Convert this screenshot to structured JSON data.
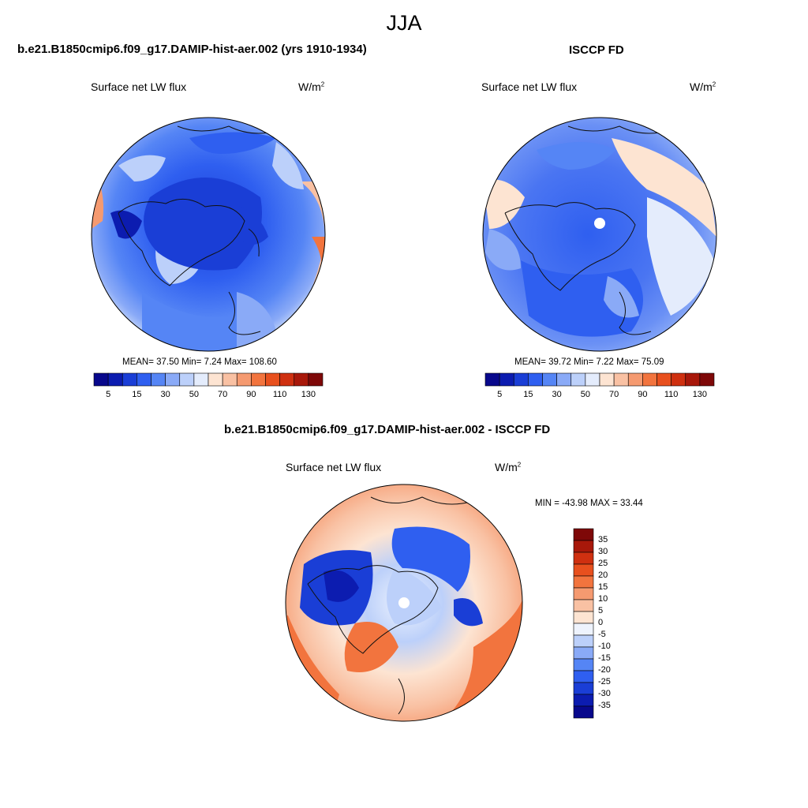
{
  "title": "JJA",
  "panels": [
    {
      "heading": "b.e21.B1850cmip6.f09_g17.DAMIP-hist-aer.002 (yrs 1910-1934)",
      "variable": "Surface net LW flux",
      "units": "W/m",
      "units_exp": "2",
      "stats": "MEAN=  37.50  Min=   7.24  Max= 108.60",
      "ticks": [
        "5",
        "15",
        "30",
        "50",
        "70",
        "90",
        "110",
        "130"
      ]
    },
    {
      "heading": "ISCCP FD",
      "variable": "Surface net LW flux",
      "units": "W/m",
      "units_exp": "2",
      "stats": "MEAN=  39.72  Min=   7.22  Max=  75.09",
      "ticks": [
        "5",
        "15",
        "30",
        "50",
        "70",
        "90",
        "110",
        "130"
      ]
    }
  ],
  "diff": {
    "heading": "b.e21.B1850cmip6.f09_g17.DAMIP-hist-aer.002 - ISCCP FD",
    "variable": "Surface net LW flux",
    "units": "W/m",
    "units_exp": "2",
    "stats": "MIN = -43.98 MAX =  33.44",
    "ticks": [
      "35",
      "30",
      "25",
      "20",
      "15",
      "10",
      "5",
      "0",
      "-5",
      "-10",
      "-15",
      "-20",
      "-25",
      "-30",
      "-35"
    ]
  },
  "colors": {
    "abs_scale": [
      "#08088c",
      "#0c1cb0",
      "#1a3ed6",
      "#2f5ff0",
      "#5585f5",
      "#8aaaf7",
      "#bcd0fa",
      "#e4ecfc",
      "#fde4d2",
      "#f9c1a3",
      "#f59a70",
      "#f2743e",
      "#e8501e",
      "#cf3010",
      "#a8180a",
      "#7e0808"
    ],
    "diff_scale": [
      "#7e0808",
      "#a8180a",
      "#cf3010",
      "#e8501e",
      "#f2743e",
      "#f59a70",
      "#f9c1a3",
      "#fde4d2",
      "#eef3fd",
      "#bcd0fa",
      "#8aaaf7",
      "#5585f5",
      "#2f5ff0",
      "#1a3ed6",
      "#0c1cb0",
      "#08088c"
    ]
  }
}
